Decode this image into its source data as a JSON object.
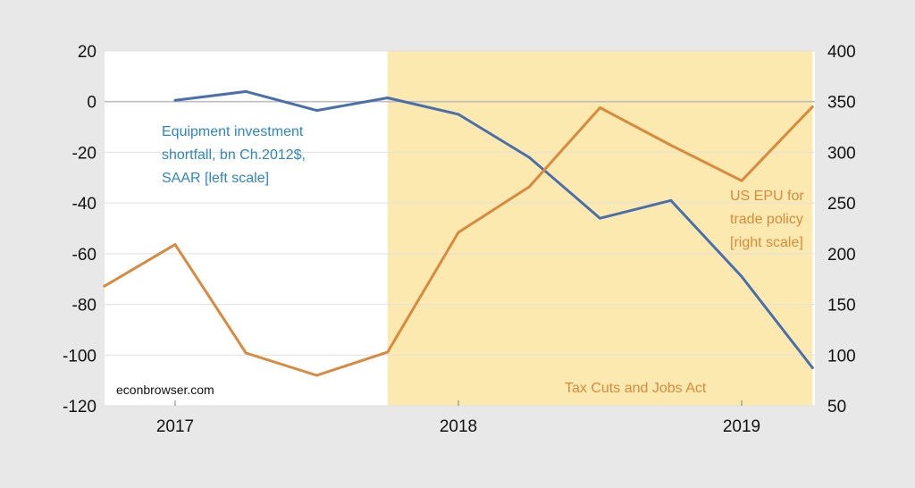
{
  "chart_data": {
    "type": "line",
    "x_tick_labels": [
      "2017",
      "2018",
      "2019"
    ],
    "x": [
      "2016-10",
      "2017-01",
      "2017-04",
      "2017-07",
      "2017-10",
      "2018-01",
      "2018-04",
      "2018-07",
      "2018-10",
      "2019-01",
      "2019-04"
    ],
    "y_left_lim": [
      -120,
      20
    ],
    "y_left_ticks": [
      "20",
      "0",
      "-20",
      "-40",
      "-60",
      "-80",
      "-100",
      "-120"
    ],
    "y_right_lim": [
      50,
      400
    ],
    "y_right_ticks": [
      "400",
      "350",
      "300",
      "250",
      "200",
      "150",
      "100",
      "50"
    ],
    "grid": true,
    "shaded_region": {
      "start": "2017-10",
      "end": "2019-04",
      "label": "Tax Cuts and Jobs Act",
      "color": "#fbe9b0"
    },
    "series": [
      {
        "axis": "left",
        "color": "#4a6fad",
        "label_lines": [
          "Equipment investment",
          "shortfall, bn Ch.2012$,",
          "SAAR [left scale]"
        ],
        "label_color": "#2e86c1",
        "values": [
          null,
          0.5,
          4,
          -3.5,
          1.5,
          -5,
          -22,
          -46,
          -39,
          -69,
          -105
        ]
      },
      {
        "axis": "right",
        "color": "#d98a3d",
        "label_lines": [
          "US EPU for",
          "trade policy",
          "[right scale]"
        ],
        "label_color": "#d98a3d",
        "values": [
          168,
          209,
          102,
          80,
          103,
          221,
          266,
          344,
          307,
          272,
          345
        ]
      }
    ],
    "watermark": "econbrowser.com"
  }
}
